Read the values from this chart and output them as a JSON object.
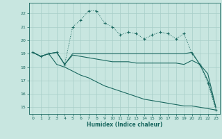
{
  "xlabel": "Humidex (Indice chaleur)",
  "bg_color": "#c8e6e0",
  "grid_color": "#a8cec8",
  "line_color": "#1a6860",
  "xlim": [
    -0.5,
    23.5
  ],
  "ylim": [
    14.5,
    22.8
  ],
  "yticks": [
    15,
    16,
    17,
    18,
    19,
    20,
    21,
    22
  ],
  "xticks": [
    0,
    1,
    2,
    3,
    4,
    5,
    6,
    7,
    8,
    9,
    10,
    11,
    12,
    13,
    14,
    15,
    16,
    17,
    18,
    19,
    20,
    21,
    22,
    23
  ],
  "line1_x": [
    0,
    1,
    2,
    3,
    4,
    5,
    6,
    7,
    8,
    9,
    10,
    11,
    12,
    13,
    14,
    15,
    16,
    17,
    18,
    19,
    20,
    21,
    22,
    23
  ],
  "line1_y": [
    19.1,
    18.8,
    19.0,
    19.1,
    18.2,
    21.0,
    21.5,
    22.2,
    22.2,
    21.3,
    21.0,
    20.4,
    20.6,
    20.5,
    20.1,
    20.4,
    20.6,
    20.5,
    20.1,
    20.5,
    19.0,
    18.2,
    16.8,
    14.8
  ],
  "line2_x": [
    0,
    1,
    2,
    3,
    4,
    5,
    6,
    7,
    8,
    9,
    10,
    11,
    12,
    13,
    14,
    15,
    16,
    17,
    18,
    19,
    20,
    21,
    22,
    23
  ],
  "line2_y": [
    19.1,
    18.8,
    19.0,
    19.1,
    18.2,
    19.0,
    19.0,
    19.0,
    19.0,
    19.0,
    19.0,
    19.0,
    19.0,
    19.0,
    19.0,
    19.0,
    19.0,
    19.0,
    19.0,
    19.0,
    19.1,
    18.2,
    17.5,
    15.0
  ],
  "line3_x": [
    0,
    1,
    2,
    3,
    4,
    5,
    6,
    7,
    8,
    9,
    10,
    11,
    12,
    13,
    14,
    15,
    16,
    17,
    18,
    19,
    20,
    21,
    22,
    23
  ],
  "line3_y": [
    19.1,
    18.8,
    19.0,
    19.1,
    18.2,
    18.9,
    18.8,
    18.7,
    18.6,
    18.5,
    18.4,
    18.4,
    18.4,
    18.3,
    18.3,
    18.3,
    18.3,
    18.3,
    18.3,
    18.2,
    18.5,
    18.2,
    17.0,
    15.0
  ],
  "line4_x": [
    0,
    1,
    2,
    3,
    4,
    5,
    6,
    7,
    8,
    9,
    10,
    11,
    12,
    13,
    14,
    15,
    16,
    17,
    18,
    19,
    20,
    21,
    22,
    23
  ],
  "line4_y": [
    19.1,
    18.8,
    19.0,
    18.2,
    18.0,
    17.7,
    17.4,
    17.2,
    16.9,
    16.6,
    16.4,
    16.2,
    16.0,
    15.8,
    15.6,
    15.5,
    15.4,
    15.3,
    15.2,
    15.1,
    15.1,
    15.0,
    14.9,
    14.8
  ]
}
